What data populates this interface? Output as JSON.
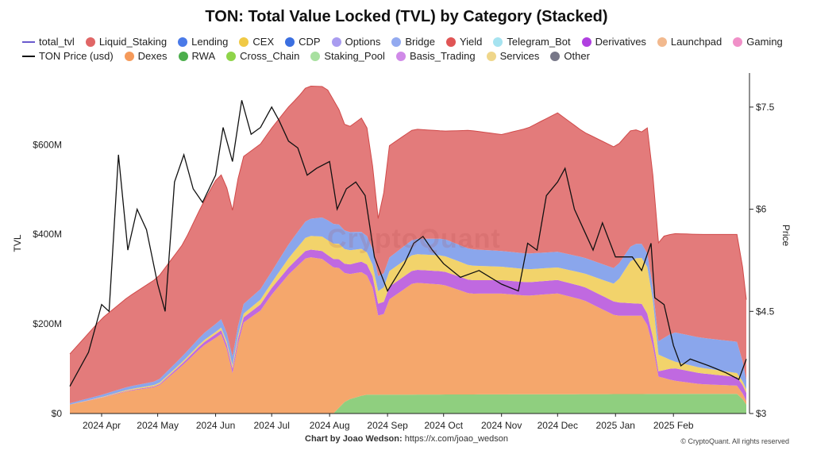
{
  "chart_data": {
    "type": "area",
    "title": "TON: Total Value Locked (TVL) by Category (Stacked)",
    "ylabel": "TVL",
    "y2label": "Price",
    "ylim": [
      0,
      760
    ],
    "y2lim": [
      3,
      8
    ],
    "yticks": [
      {
        "v": 0,
        "label": "$0"
      },
      {
        "v": 200,
        "label": "$200M"
      },
      {
        "v": 400,
        "label": "$400M"
      },
      {
        "v": 600,
        "label": "$600M"
      }
    ],
    "y2ticks": [
      {
        "v": 3,
        "label": "$3"
      },
      {
        "v": 4.5,
        "label": "$4.5"
      },
      {
        "v": 6,
        "label": "$6"
      },
      {
        "v": 7.5,
        "label": "$7.5"
      }
    ],
    "xrange": [
      "2024-03-15",
      "2025-03-12"
    ],
    "xticks": [
      {
        "date": "2024-04-01",
        "label": "2024 Apr"
      },
      {
        "date": "2024-05-01",
        "label": "2024 May"
      },
      {
        "date": "2024-06-01",
        "label": "2024 Jun"
      },
      {
        "date": "2024-07-01",
        "label": "2024 Jul"
      },
      {
        "date": "2024-08-01",
        "label": "2024 Aug"
      },
      {
        "date": "2024-09-01",
        "label": "2024 Sep"
      },
      {
        "date": "2024-10-01",
        "label": "2024 Oct"
      },
      {
        "date": "2024-11-01",
        "label": "2024 Nov"
      },
      {
        "date": "2024-12-01",
        "label": "2024 Dec"
      },
      {
        "date": "2025-01-01",
        "label": "2025 Jan"
      },
      {
        "date": "2025-02-01",
        "label": "2025 Feb"
      }
    ],
    "grid": false,
    "legend_position": "top",
    "legend_rows": [
      [
        {
          "name": "total_tvl",
          "color": "#6a5acd",
          "shape": "line"
        },
        {
          "name": "Liquid_Staking",
          "color": "#e06666",
          "shape": "dot"
        },
        {
          "name": "Lending",
          "color": "#4a7ae8",
          "shape": "dot"
        },
        {
          "name": "CEX",
          "color": "#f0c945",
          "shape": "dot"
        },
        {
          "name": "CDP",
          "color": "#3b6fe0",
          "shape": "dot"
        },
        {
          "name": "Options",
          "color": "#a99cf0",
          "shape": "dot"
        },
        {
          "name": "Bridge",
          "color": "#93aaf0",
          "shape": "dot"
        },
        {
          "name": "Yield",
          "color": "#e05555",
          "shape": "dot"
        },
        {
          "name": "Telegram_Bot",
          "color": "#a6e3f0",
          "shape": "dot"
        },
        {
          "name": "Derivatives",
          "color": "#b040e0",
          "shape": "dot"
        },
        {
          "name": "Launchpad",
          "color": "#f2b98e",
          "shape": "dot"
        },
        {
          "name": "Gaming",
          "color": "#f090c8",
          "shape": "dot"
        }
      ],
      [
        {
          "name": "TON Price (usd)",
          "color": "#111111",
          "shape": "line"
        },
        {
          "name": "Dexes",
          "color": "#f59a5a",
          "shape": "dot"
        },
        {
          "name": "RWA",
          "color": "#4cae4c",
          "shape": "dot"
        },
        {
          "name": "Cross_Chain",
          "color": "#8fd44a",
          "shape": "dot"
        },
        {
          "name": "Staking_Pool",
          "color": "#a8e0a0",
          "shape": "dot"
        },
        {
          "name": "Basis_Trading",
          "color": "#d08ae8",
          "shape": "dot"
        },
        {
          "name": "Services",
          "color": "#efd68a",
          "shape": "dot"
        },
        {
          "name": "Other",
          "color": "#777788",
          "shape": "dot"
        }
      ]
    ],
    "layers": [
      {
        "name": "Staking_Pool",
        "color": "#8fcf7f",
        "points": [
          [
            "2024-03-15",
            0
          ],
          [
            "2024-08-03",
            0
          ],
          [
            "2024-08-10",
            30
          ],
          [
            "2024-08-20",
            42
          ],
          [
            "2025-03-08",
            44
          ],
          [
            "2025-03-12",
            20
          ]
        ]
      },
      {
        "name": "Dexes",
        "color": "#f5a76c",
        "points": [
          [
            "2024-03-15",
            20
          ],
          [
            "2024-04-01",
            35
          ],
          [
            "2024-04-15",
            50
          ],
          [
            "2024-05-01",
            60
          ],
          [
            "2024-05-15",
            110
          ],
          [
            "2024-05-25",
            150
          ],
          [
            "2024-06-05",
            180
          ],
          [
            "2024-06-10",
            90
          ],
          [
            "2024-06-15",
            200
          ],
          [
            "2024-06-25",
            230
          ],
          [
            "2024-07-01",
            265
          ],
          [
            "2024-07-10",
            310
          ],
          [
            "2024-07-20",
            350
          ],
          [
            "2024-07-28",
            345
          ],
          [
            "2024-08-05",
            320
          ],
          [
            "2024-08-10",
            280
          ],
          [
            "2024-08-20",
            275
          ],
          [
            "2024-08-25",
            230
          ],
          [
            "2024-08-28",
            150
          ],
          [
            "2024-09-01",
            210
          ],
          [
            "2024-09-15",
            250
          ],
          [
            "2024-10-01",
            245
          ],
          [
            "2024-10-15",
            225
          ],
          [
            "2024-11-01",
            225
          ],
          [
            "2024-11-15",
            220
          ],
          [
            "2024-12-01",
            225
          ],
          [
            "2024-12-15",
            210
          ],
          [
            "2025-01-01",
            175
          ],
          [
            "2025-01-15",
            175
          ],
          [
            "2025-01-20",
            140
          ],
          [
            "2025-01-23",
            40
          ],
          [
            "2025-02-01",
            30
          ],
          [
            "2025-02-15",
            22
          ],
          [
            "2025-03-08",
            18
          ],
          [
            "2025-03-12",
            8
          ]
        ]
      },
      {
        "name": "Basis_Trading",
        "color": "#c069e0",
        "points": [
          [
            "2024-03-15",
            0
          ],
          [
            "2024-05-01",
            2
          ],
          [
            "2024-06-01",
            8
          ],
          [
            "2024-07-01",
            15
          ],
          [
            "2024-08-01",
            18
          ],
          [
            "2024-09-01",
            28
          ],
          [
            "2024-10-01",
            30
          ],
          [
            "2024-11-01",
            30
          ],
          [
            "2024-12-01",
            30
          ],
          [
            "2025-01-01",
            30
          ],
          [
            "2025-01-20",
            25
          ],
          [
            "2025-01-23",
            10
          ],
          [
            "2025-02-01",
            28
          ],
          [
            "2025-03-12",
            18
          ]
        ]
      },
      {
        "name": "CEX",
        "color": "#f2d36b",
        "points": [
          [
            "2024-03-15",
            0
          ],
          [
            "2024-06-01",
            5
          ],
          [
            "2024-07-01",
            12
          ],
          [
            "2024-07-20",
            30
          ],
          [
            "2024-08-05",
            35
          ],
          [
            "2024-08-25",
            25
          ],
          [
            "2024-09-01",
            35
          ],
          [
            "2024-10-01",
            35
          ],
          [
            "2024-11-01",
            30
          ],
          [
            "2024-12-01",
            28
          ],
          [
            "2024-12-15",
            30
          ],
          [
            "2025-01-01",
            40
          ],
          [
            "2025-01-10",
            100
          ],
          [
            "2025-01-20",
            105
          ],
          [
            "2025-01-23",
            40
          ],
          [
            "2025-02-01",
            15
          ],
          [
            "2025-03-12",
            8
          ]
        ]
      },
      {
        "name": "Lending",
        "color": "#8aa6ec",
        "points": [
          [
            "2024-03-15",
            3
          ],
          [
            "2024-05-01",
            8
          ],
          [
            "2024-06-01",
            18
          ],
          [
            "2024-07-01",
            25
          ],
          [
            "2024-08-01",
            45
          ],
          [
            "2024-08-25",
            35
          ],
          [
            "2024-09-01",
            30
          ],
          [
            "2024-10-01",
            38
          ],
          [
            "2024-11-01",
            35
          ],
          [
            "2024-12-01",
            35
          ],
          [
            "2025-01-01",
            35
          ],
          [
            "2025-01-20",
            30
          ],
          [
            "2025-01-23",
            25
          ],
          [
            "2025-02-01",
            65
          ],
          [
            "2025-03-08",
            70
          ],
          [
            "2025-03-12",
            20
          ]
        ]
      },
      {
        "name": "Liquid_Staking",
        "color": "#e37b7b",
        "points": [
          [
            "2024-03-15",
            110
          ],
          [
            "2024-04-01",
            170
          ],
          [
            "2024-04-15",
            200
          ],
          [
            "2024-05-01",
            230
          ],
          [
            "2024-05-15",
            250
          ],
          [
            "2024-06-01",
            320
          ],
          [
            "2024-06-15",
            330
          ],
          [
            "2024-07-01",
            320
          ],
          [
            "2024-07-15",
            300
          ],
          [
            "2024-08-01",
            290
          ],
          [
            "2024-08-10",
            230
          ],
          [
            "2024-08-20",
            260
          ],
          [
            "2024-08-28",
            110
          ],
          [
            "2024-09-01",
            250
          ],
          [
            "2024-09-15",
            245
          ],
          [
            "2024-10-01",
            240
          ],
          [
            "2024-10-15",
            265
          ],
          [
            "2024-11-01",
            260
          ],
          [
            "2024-11-15",
            280
          ],
          [
            "2024-12-01",
            310
          ],
          [
            "2024-12-15",
            280
          ],
          [
            "2025-01-01",
            270
          ],
          [
            "2025-01-15",
            250
          ],
          [
            "2025-01-20",
            300
          ],
          [
            "2025-01-22",
            200
          ],
          [
            "2025-01-25",
            230
          ],
          [
            "2025-02-01",
            220
          ],
          [
            "2025-02-15",
            230
          ],
          [
            "2025-03-08",
            240
          ],
          [
            "2025-03-12",
            180
          ]
        ]
      }
    ],
    "price": [
      [
        "2024-03-15",
        3.4
      ],
      [
        "2024-03-25",
        3.9
      ],
      [
        "2024-04-01",
        4.6
      ],
      [
        "2024-04-05",
        4.5
      ],
      [
        "2024-04-10",
        6.8
      ],
      [
        "2024-04-15",
        5.4
      ],
      [
        "2024-04-20",
        6.0
      ],
      [
        "2024-04-25",
        5.7
      ],
      [
        "2024-05-01",
        4.9
      ],
      [
        "2024-05-05",
        4.5
      ],
      [
        "2024-05-10",
        6.4
      ],
      [
        "2024-05-15",
        6.8
      ],
      [
        "2024-05-20",
        6.3
      ],
      [
        "2024-05-25",
        6.1
      ],
      [
        "2024-06-01",
        6.5
      ],
      [
        "2024-06-05",
        7.2
      ],
      [
        "2024-06-10",
        6.7
      ],
      [
        "2024-06-15",
        7.6
      ],
      [
        "2024-06-20",
        7.1
      ],
      [
        "2024-06-25",
        7.2
      ],
      [
        "2024-07-01",
        7.5
      ],
      [
        "2024-07-05",
        7.3
      ],
      [
        "2024-07-10",
        7.0
      ],
      [
        "2024-07-15",
        6.9
      ],
      [
        "2024-07-20",
        6.5
      ],
      [
        "2024-07-25",
        6.6
      ],
      [
        "2024-08-01",
        6.7
      ],
      [
        "2024-08-05",
        6.0
      ],
      [
        "2024-08-10",
        6.3
      ],
      [
        "2024-08-15",
        6.4
      ],
      [
        "2024-08-20",
        6.2
      ],
      [
        "2024-08-25",
        5.3
      ],
      [
        "2024-09-01",
        4.8
      ],
      [
        "2024-09-10",
        5.2
      ],
      [
        "2024-09-15",
        5.5
      ],
      [
        "2024-09-20",
        5.6
      ],
      [
        "2024-09-25",
        5.4
      ],
      [
        "2024-10-01",
        5.2
      ],
      [
        "2024-10-10",
        5.0
      ],
      [
        "2024-10-20",
        5.1
      ],
      [
        "2024-11-01",
        4.9
      ],
      [
        "2024-11-10",
        4.8
      ],
      [
        "2024-11-15",
        5.5
      ],
      [
        "2024-11-20",
        5.4
      ],
      [
        "2024-11-25",
        6.2
      ],
      [
        "2024-12-01",
        6.4
      ],
      [
        "2024-12-05",
        6.6
      ],
      [
        "2024-12-10",
        6.0
      ],
      [
        "2024-12-15",
        5.7
      ],
      [
        "2024-12-20",
        5.4
      ],
      [
        "2024-12-25",
        5.8
      ],
      [
        "2025-01-01",
        5.3
      ],
      [
        "2025-01-10",
        5.3
      ],
      [
        "2025-01-15",
        5.1
      ],
      [
        "2025-01-20",
        5.5
      ],
      [
        "2025-01-22",
        4.7
      ],
      [
        "2025-01-27",
        4.6
      ],
      [
        "2025-02-01",
        4.0
      ],
      [
        "2025-02-05",
        3.7
      ],
      [
        "2025-02-10",
        3.8
      ],
      [
        "2025-02-20",
        3.7
      ],
      [
        "2025-03-01",
        3.6
      ],
      [
        "2025-03-08",
        3.5
      ],
      [
        "2025-03-12",
        3.8
      ]
    ],
    "watermark": "CryptoQuant",
    "footer_label": "Chart by Joao Wedson:",
    "footer_link": "https://x.com/joao_wedson",
    "copyright": "© CryptoQuant. All rights reserved"
  }
}
